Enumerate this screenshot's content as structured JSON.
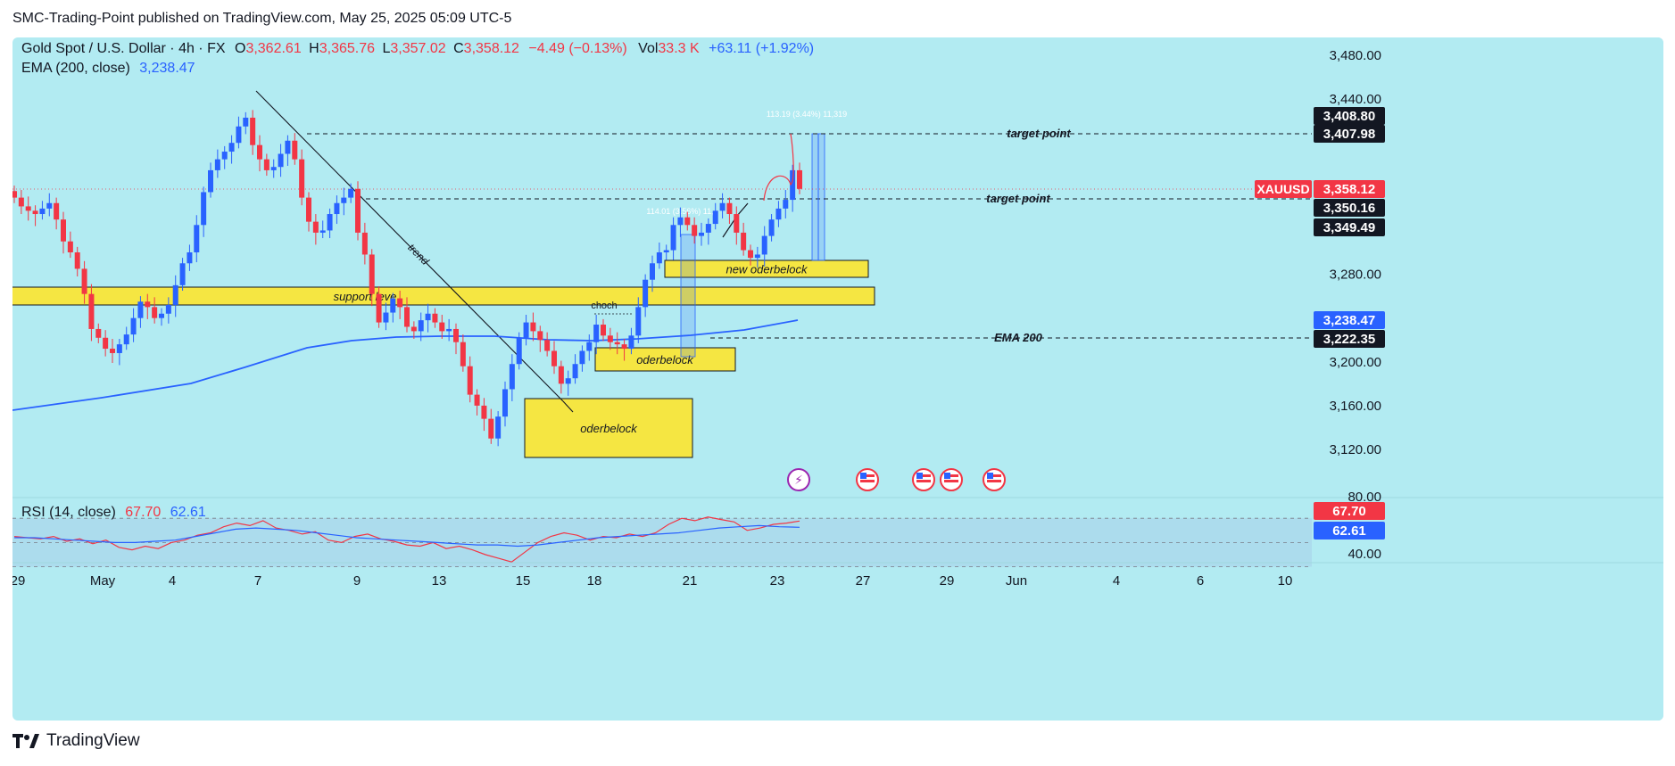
{
  "header": {
    "text": "SMC-Trading-Point published on TradingView.com, May 25, 2025 05:09 UTC-5"
  },
  "legend": {
    "symbol": "Gold Spot / U.S. Dollar · 4h · FX",
    "o_label": "O",
    "o": "3,362.61",
    "h_label": "H",
    "h": "3,365.76",
    "l_label": "L",
    "l": "3,357.02",
    "c_label": "C",
    "c": "3,358.12",
    "chg": "−4.49 (−0.13%)",
    "vol_label": "Vol",
    "vol": "33.3 K",
    "vol_chg": "+63.11 (+1.92%)",
    "ema_label": "EMA (200, close)",
    "ema_value": "3,238.47",
    "rsi_label": "RSI (14, close)",
    "rsi_value": "67.70",
    "rsi_ma_value": "62.61"
  },
  "colors": {
    "background": "#b2ebf2",
    "up": "#2962ff",
    "down": "#f23645",
    "ema": "#2962ff",
    "zone": "#f5e642",
    "rsi": "#f23645",
    "rsi_ma": "#2962ff"
  },
  "annotations": {
    "target_point_1": "target point",
    "target_point_2": "target point",
    "ema_200": "EMA 200",
    "support_level": "support leve",
    "trend": "trend",
    "choch": "choch",
    "orderblock_1": "oderbelock",
    "orderblock_2": "oderbelock",
    "orderblock_3": "new oderbelock",
    "measure_1": "114.01 (3.56%) 11,",
    "measure_2": "113.19 (3.44%) 11,319"
  },
  "price_axis": {
    "ticks": [
      "3,480.00",
      "3,440.00",
      "3,280.00",
      "3,200.00",
      "3,160.00",
      "3,120.00"
    ],
    "tags": [
      {
        "text": "3,408.80",
        "kind": "dark"
      },
      {
        "text": "3,407.98",
        "kind": "dark"
      },
      {
        "text": "3,358.12",
        "kind": "red"
      },
      {
        "text": "3,350.16",
        "kind": "dark"
      },
      {
        "text": "3,349.49",
        "kind": "dark"
      },
      {
        "text": "3,238.47",
        "kind": "blue"
      },
      {
        "text": "3,222.35",
        "kind": "dark"
      }
    ],
    "symbol_tag": "XAUUSD"
  },
  "rsi_axis": {
    "ticks": [
      "80.00",
      "40.00"
    ],
    "tags": [
      {
        "text": "67.70",
        "kind": "red"
      },
      {
        "text": "62.61",
        "kind": "blue"
      }
    ]
  },
  "time_axis": {
    "labels": [
      "29",
      "May",
      "4",
      "7",
      "9",
      "13",
      "15",
      "18",
      "21",
      "23",
      "27",
      "29",
      "Jun",
      "4",
      "6",
      "10"
    ]
  },
  "footer": {
    "brand": "TradingView"
  },
  "chart_data": {
    "type": "candlestick",
    "title": "Gold Spot / U.S. Dollar · 4h · FX",
    "ylim": [
      3100,
      3500
    ],
    "close_series": [
      3350,
      3342,
      3338,
      3335,
      3340,
      3345,
      3330,
      3310,
      3300,
      3285,
      3262,
      3230,
      3222,
      3212,
      3208,
      3216,
      3225,
      3240,
      3255,
      3250,
      3240,
      3244,
      3252,
      3270,
      3290,
      3300,
      3325,
      3355,
      3375,
      3385,
      3392,
      3400,
      3415,
      3423,
      3398,
      3385,
      3375,
      3378,
      3390,
      3402,
      3385,
      3350,
      3328,
      3318,
      3320,
      3335,
      3345,
      3350,
      3358,
      3318,
      3298,
      3262,
      3236,
      3245,
      3258,
      3250,
      3232,
      3228,
      3238,
      3244,
      3236,
      3228,
      3230,
      3218,
      3196,
      3170,
      3160,
      3148,
      3130,
      3150,
      3175,
      3198,
      3222,
      3236,
      3228,
      3220,
      3210,
      3196,
      3180,
      3185,
      3198,
      3210,
      3218,
      3234,
      3224,
      3218,
      3216,
      3212,
      3224,
      3250,
      3275,
      3290,
      3300,
      3302,
      3325,
      3332,
      3325,
      3315,
      3318,
      3326,
      3338,
      3345,
      3335,
      3318,
      3302,
      3295,
      3298,
      3315,
      3330,
      3340,
      3348,
      3375,
      3358
    ],
    "ema_200_end": 3238.47,
    "zones": [
      {
        "name": "support level",
        "low": 3262,
        "high": 3272
      },
      {
        "name": "new orderblock",
        "low": 3278,
        "high": 3290
      },
      {
        "name": "orderblock",
        "low": 3195,
        "high": 3207
      },
      {
        "name": "orderblock",
        "low": 3115,
        "high": 3170
      }
    ],
    "levels": {
      "target_1": 3408.8,
      "target_2": 3350.16,
      "ema_200_line": 3222.35
    },
    "rsi": {
      "value": 67.7,
      "ma": 62.61,
      "ylim": [
        30,
        90
      ],
      "band": [
        30,
        70
      ]
    }
  }
}
